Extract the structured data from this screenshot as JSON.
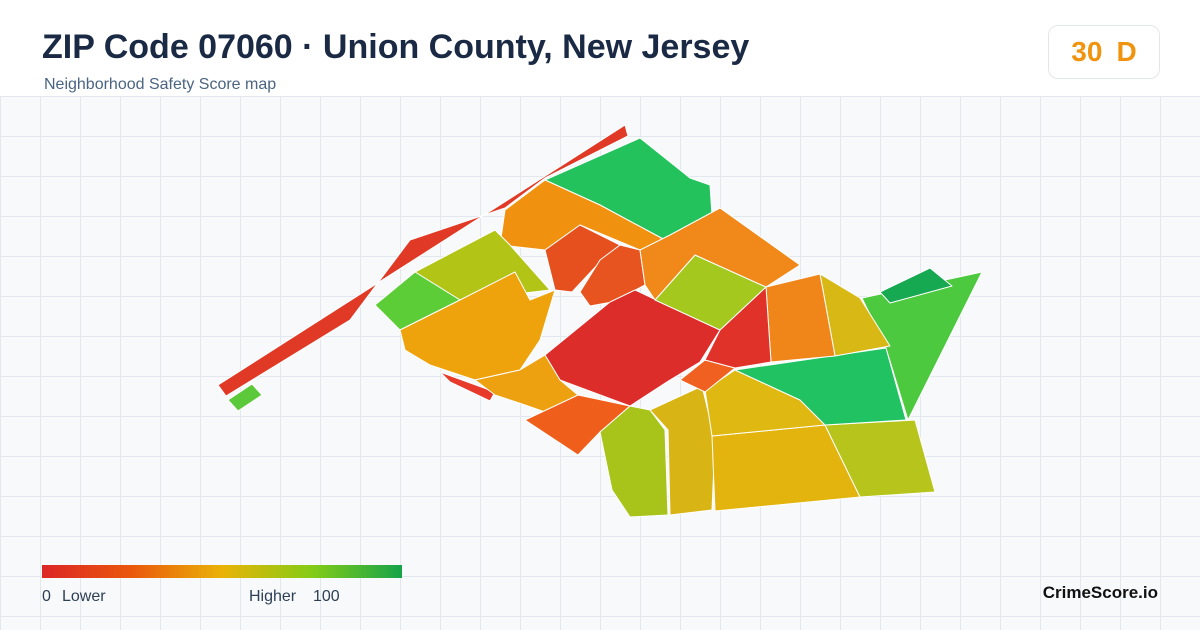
{
  "header": {
    "title": "ZIP Code 07060 · Union County, New Jersey",
    "subtitle": "Neighborhood Safety Score map",
    "score": "30",
    "grade": "D"
  },
  "legend": {
    "min": "0",
    "min_label": "Lower",
    "max_label": "Higher",
    "max": "100"
  },
  "footer": {
    "brand": "CrimeScore.io"
  }
}
